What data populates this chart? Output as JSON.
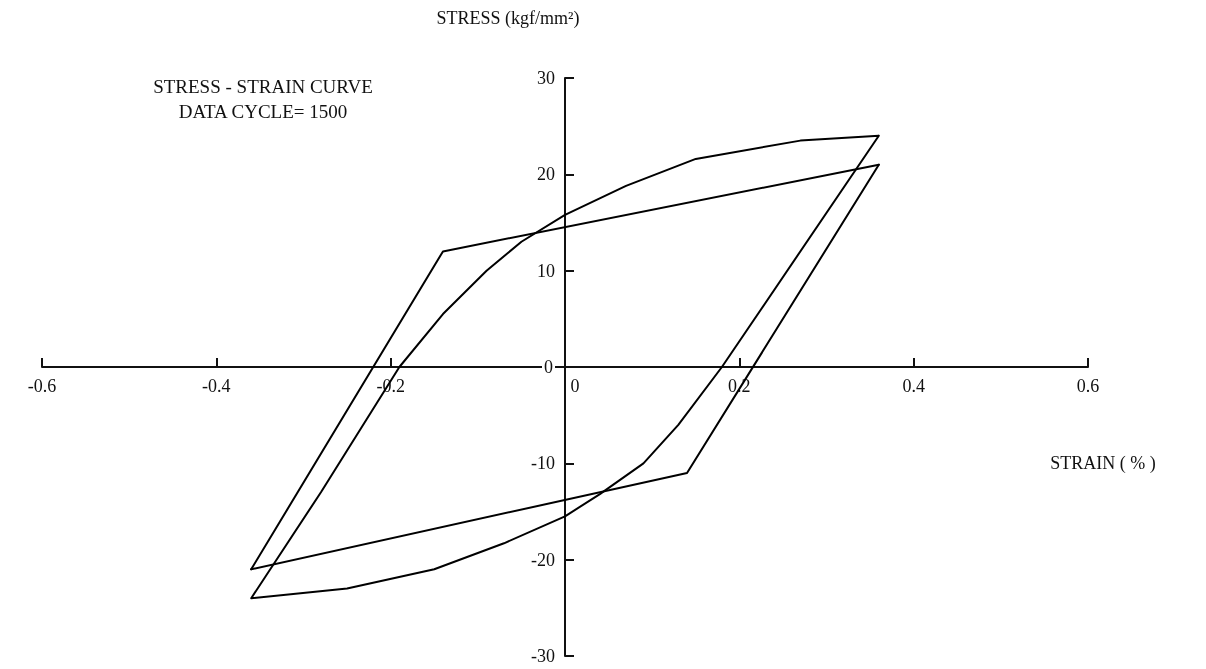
{
  "chart_data": {
    "type": "line",
    "title": "STRESS - STRAIN CURVE",
    "subtitle": "DATA CYCLE= 1500",
    "xlabel": "STRAIN ( % )",
    "ylabel": "STRESS (kgf/mm²)",
    "series": [
      {
        "color": "#000000",
        "x": [
          -0.36,
          -0.14,
          0.36
        ],
        "values": [
          -21,
          12,
          21
        ]
      },
      {
        "color": "#000000",
        "x": [
          -0.36,
          0.14,
          0.36
        ],
        "values": [
          -21,
          -11,
          21
        ]
      },
      {
        "color": "#000000",
        "x": [
          0.36,
          0.18,
          0.13,
          0.09,
          0.04,
          0,
          -0.07,
          -0.15,
          -0.25,
          -0.36,
          -0.28,
          -0.19,
          -0.14,
          -0.09,
          -0.05,
          0,
          0.07,
          0.15,
          0.27,
          0.36,
          0.18
        ],
        "values": [
          24,
          0,
          -6,
          -10,
          -13.2,
          -15.5,
          -18.3,
          -21,
          -23,
          -24,
          -13,
          0,
          5.5,
          10,
          13,
          15.8,
          18.8,
          21.6,
          23.5,
          24,
          0
        ]
      }
    ],
    "xlim": [
      -0.6,
      0.6
    ],
    "ylim": [
      -30,
      30
    ],
    "xticks": [
      -0.6,
      -0.4,
      -0.2,
      0,
      0.2,
      0.4,
      0.6
    ],
    "yticks": [
      -30,
      -20,
      -10,
      0,
      10,
      20,
      30
    ],
    "grid": false,
    "line_style": "solid"
  }
}
